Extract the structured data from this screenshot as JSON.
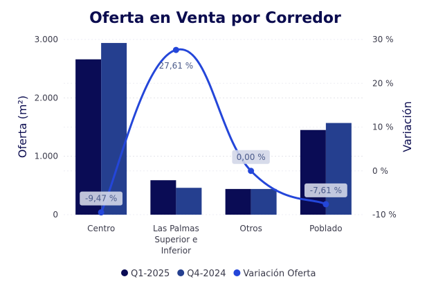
{
  "chart_data": {
    "type": "bar",
    "title": "Oferta en Venta por Corredor",
    "ylabel": "Oferta (m²)",
    "y2label": "Variación",
    "categories": [
      [
        "Centro"
      ],
      [
        "Las Palmas",
        "Superior e",
        "Inferior"
      ],
      [
        "Otros"
      ],
      [
        "Poblado"
      ]
    ],
    "ylim": [
      0,
      3000
    ],
    "yticks": [
      0,
      1000,
      2000,
      3000
    ],
    "ytick_labels": [
      "0",
      "1.000",
      "2.000",
      "3.000"
    ],
    "y2lim": [
      -10,
      30
    ],
    "y2ticks": [
      -10,
      0,
      10,
      20,
      30
    ],
    "y2tick_labels": [
      "-10 %",
      "0 %",
      "10 %",
      "20 %",
      "30 %"
    ],
    "series": [
      {
        "name": "Q1-2025",
        "type": "bar",
        "color": "#0a0c55",
        "values": [
          2660,
          590,
          440,
          1450
        ]
      },
      {
        "name": "Q4-2024",
        "type": "bar",
        "color": "#253f8f",
        "values": [
          2940,
          460,
          440,
          1570
        ]
      },
      {
        "name": "Variación Oferta",
        "type": "line",
        "axis": "y2",
        "color": "#2446d9",
        "values": [
          -9.47,
          27.61,
          0.0,
          -7.61
        ],
        "labels": [
          "-9,47 %",
          "27,61 %",
          "0,00 %",
          "-7,61 %"
        ]
      }
    ],
    "grid": true,
    "legend_position": "bottom"
  }
}
